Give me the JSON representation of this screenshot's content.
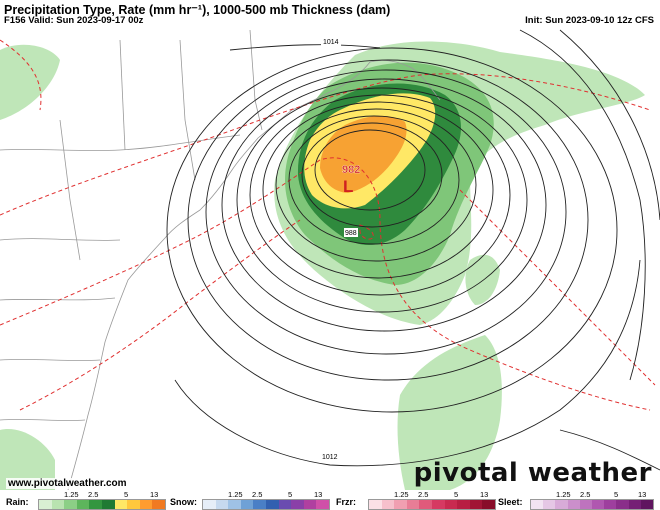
{
  "header": {
    "title": "Precipitation Type, Rate (mm hr⁻¹), 1000-500 mb Thickness (dam)",
    "valid": "F156 Valid: Sun 2023-09-17 00z",
    "init": "Init: Sun 2023-09-10 12z CFS"
  },
  "map": {
    "low_pressure_value": "982",
    "low_symbol": "L",
    "isobar_labels": [
      "1014",
      "988",
      "1012"
    ]
  },
  "footer": {
    "website": "www.pivotalweather.com",
    "brand": "pivotal weather"
  },
  "legend": {
    "rain": {
      "name": "Rain:",
      "ticks": [
        "1.25",
        "2.5",
        "5",
        "13"
      ],
      "colors": [
        "#d9f0d3",
        "#b9e3b0",
        "#8ccf86",
        "#5db55c",
        "#33963f",
        "#1f7a33",
        "#ffe866",
        "#ffc83d",
        "#ff9c2f",
        "#f07a22"
      ]
    },
    "snow": {
      "name": "Snow:",
      "ticks": [
        "1.25",
        "2.5",
        "5",
        "13"
      ],
      "colors": [
        "#e6eef8",
        "#c6d9ef",
        "#9fc2e6",
        "#6fa1d6",
        "#4a7fc6",
        "#3260b0",
        "#6a4cb0",
        "#8a40a8",
        "#b040a0",
        "#d050a8"
      ]
    },
    "frzr": {
      "name": "Frzr:",
      "ticks": [
        "1.25",
        "2.5",
        "5",
        "13"
      ],
      "colors": [
        "#fbe0e6",
        "#f6c0cc",
        "#f09fb1",
        "#e87d96",
        "#e05a7b",
        "#d63a62",
        "#c92a50",
        "#b81e42",
        "#a11535",
        "#880d29"
      ]
    },
    "sleet": {
      "name": "Sleet:",
      "ticks": [
        "1.25",
        "2.5",
        "5",
        "13"
      ],
      "colors": [
        "#f2e3f2",
        "#e5c7e5",
        "#d8abd8",
        "#cb8fcb",
        "#be73be",
        "#b057b0",
        "#9e3f9e",
        "#8a2e8a",
        "#751f75",
        "#5f145f"
      ]
    }
  },
  "colors": {
    "rain_light": "#bfe6b8",
    "rain_mid": "#5db55c",
    "rain_dark": "#1f7a33",
    "rain_heavy_yellow": "#ffe866",
    "rain_heavy_orange": "#f7a233",
    "thickness_line": "#e03030",
    "isobar": "#222222",
    "border": "#999999"
  }
}
